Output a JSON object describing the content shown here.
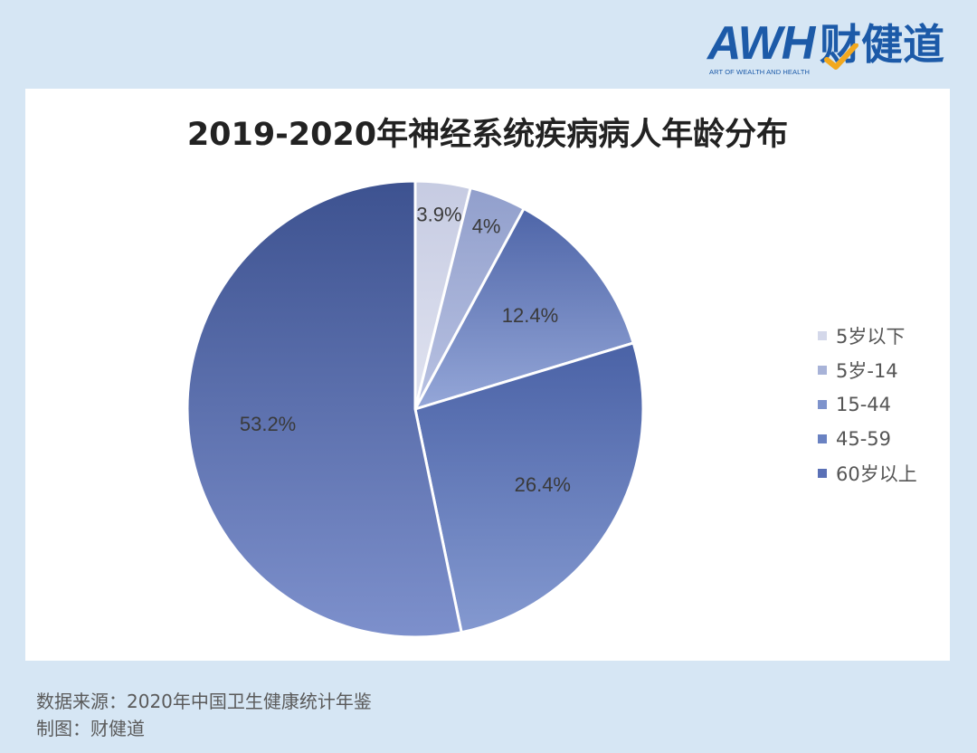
{
  "brand": {
    "mark": "AWH",
    "name_cn": "财健道",
    "tagline": "ART OF WEALTH AND HEALTH",
    "color": "#1c5aa8",
    "accent": "#f2a81d"
  },
  "footer": {
    "source": "数据来源：2020年中国卫生健康统计年鉴",
    "credit": "制图：财健道"
  },
  "chart_data": {
    "type": "pie",
    "title": "2019-2020年神经系统疾病病人年龄分布",
    "categories": [
      "5岁以下",
      "5岁-14",
      "15-44",
      "45-59",
      "60岁以上"
    ],
    "values": [
      3.9,
      4,
      12.4,
      26.4,
      53.2
    ],
    "labels": [
      "3.9%",
      "4%",
      "12.4%",
      "26.4%",
      "53.2%"
    ],
    "colors": [
      "#d4d8ea",
      "#a8b3d8",
      "#7e93cc",
      "#6a82c2",
      "#5a70b6"
    ],
    "gradient_light": [
      "#e0e3f0",
      "#b9c2e2",
      "#95a7d8",
      "#8499d0",
      "#7d90cc"
    ],
    "gradient_dark": [
      "#c6cbe2",
      "#919fcc",
      "#4e65a8",
      "#4a62a6",
      "#3d5290"
    ],
    "legend_position": "right"
  }
}
